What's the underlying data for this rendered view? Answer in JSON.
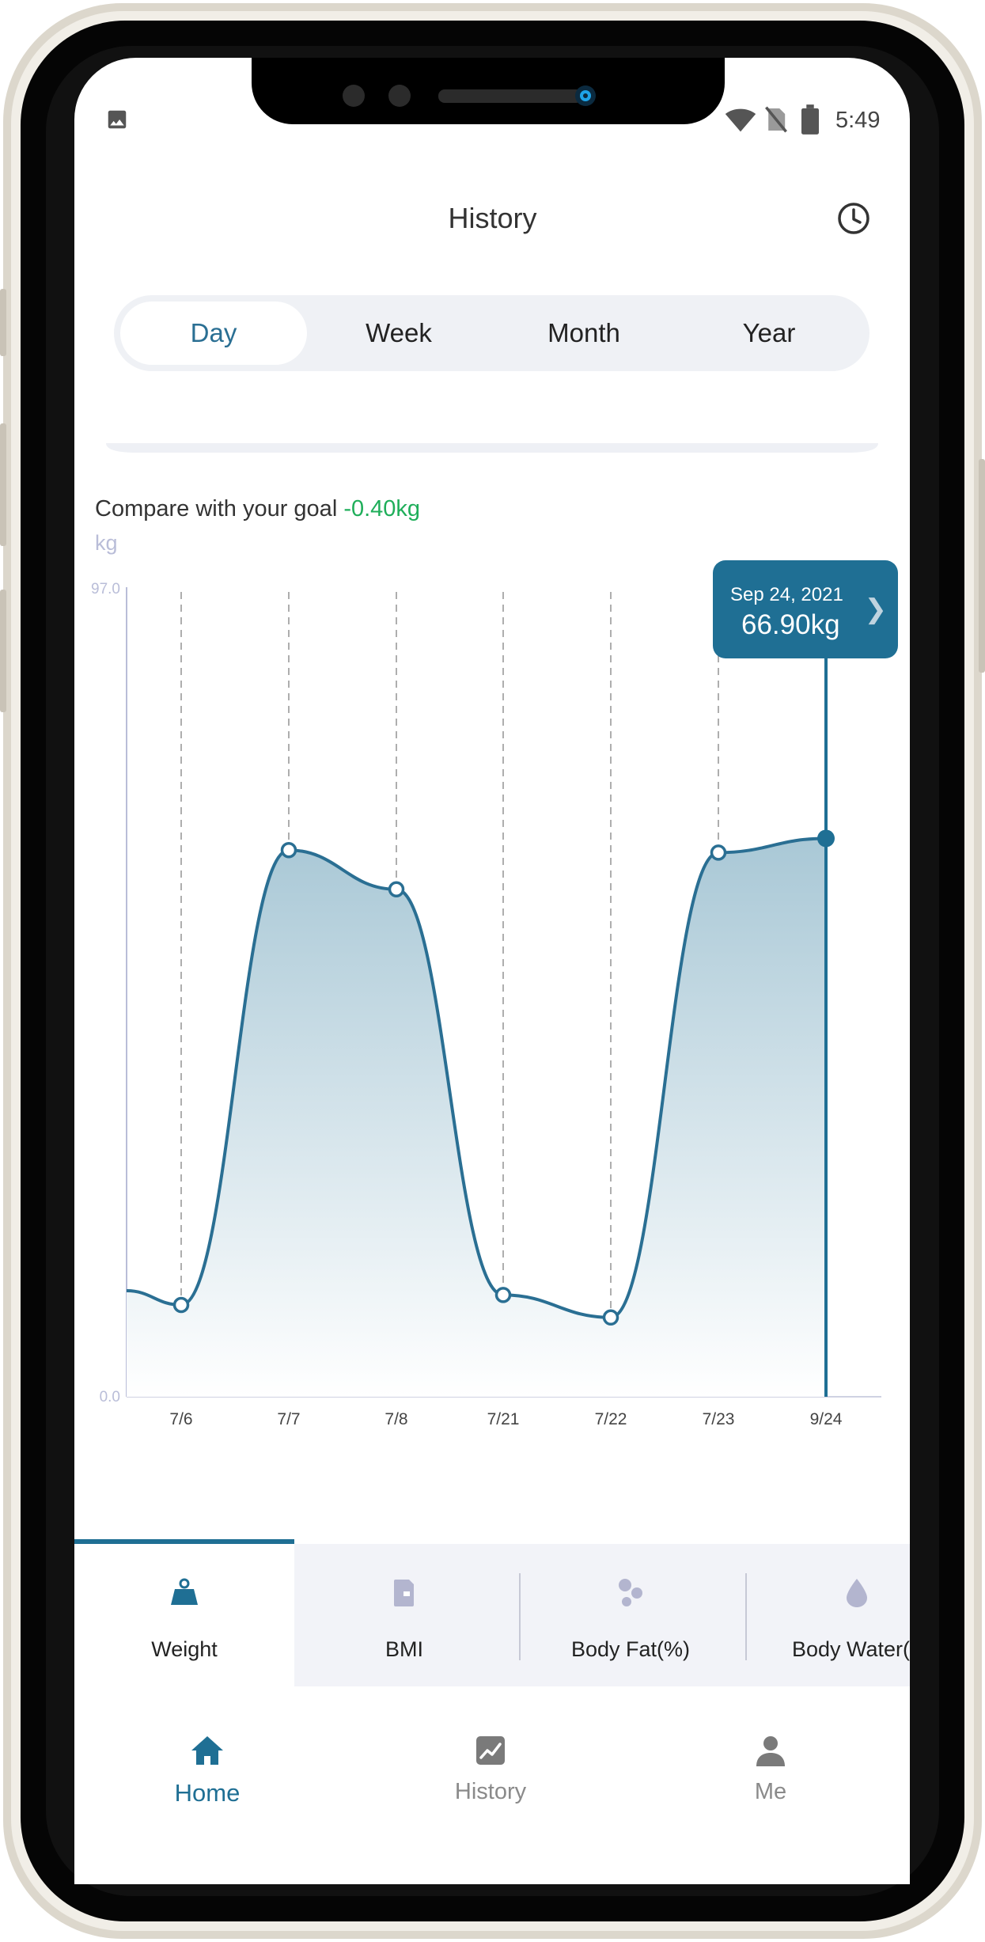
{
  "status_bar": {
    "time": "5:49"
  },
  "header": {
    "title": "History"
  },
  "period_tabs": [
    {
      "label": "Day",
      "active": true
    },
    {
      "label": "Week",
      "active": false
    },
    {
      "label": "Month",
      "active": false
    },
    {
      "label": "Year",
      "active": false
    }
  ],
  "compare": {
    "prefix": "Compare with your goal ",
    "value": "-0.40kg"
  },
  "chart_unit": "kg",
  "tooltip": {
    "date": "Sep 24, 2021",
    "value": "66.90kg"
  },
  "chart_data": {
    "type": "area",
    "categories": [
      "7/6",
      "7/7",
      "7/8",
      "7/21",
      "7/22",
      "7/23",
      "9/24"
    ],
    "values": [
      11,
      65.5,
      60.8,
      12.2,
      9.5,
      65.2,
      66.9
    ],
    "ylabel": "kg",
    "ylim": [
      0.0,
      97.0
    ],
    "y_tick_labels": [
      "0.0",
      "97.0"
    ],
    "selected_index": 6,
    "grid": "vertical dashed",
    "colors": {
      "line": "#2a6f93",
      "fill_top": "#a9c8d6",
      "fill_bottom": "#ffffff"
    }
  },
  "metric_tabs": [
    {
      "label": "Weight",
      "icon": "weight-icon",
      "active": true
    },
    {
      "label": "BMI",
      "icon": "bmi-icon",
      "active": false
    },
    {
      "label": "Body Fat(%)",
      "icon": "body-fat-icon",
      "active": false
    },
    {
      "label": "Body Water(%",
      "icon": "water-drop-icon",
      "active": false
    }
  ],
  "bottom_nav": [
    {
      "label": "Home",
      "icon": "home-icon",
      "active": true
    },
    {
      "label": "History",
      "icon": "history-chart-icon",
      "active": false
    },
    {
      "label": "Me",
      "icon": "person-icon",
      "active": false
    }
  ],
  "colors": {
    "accent": "#1f6f94",
    "positive": "#1fae5a"
  }
}
